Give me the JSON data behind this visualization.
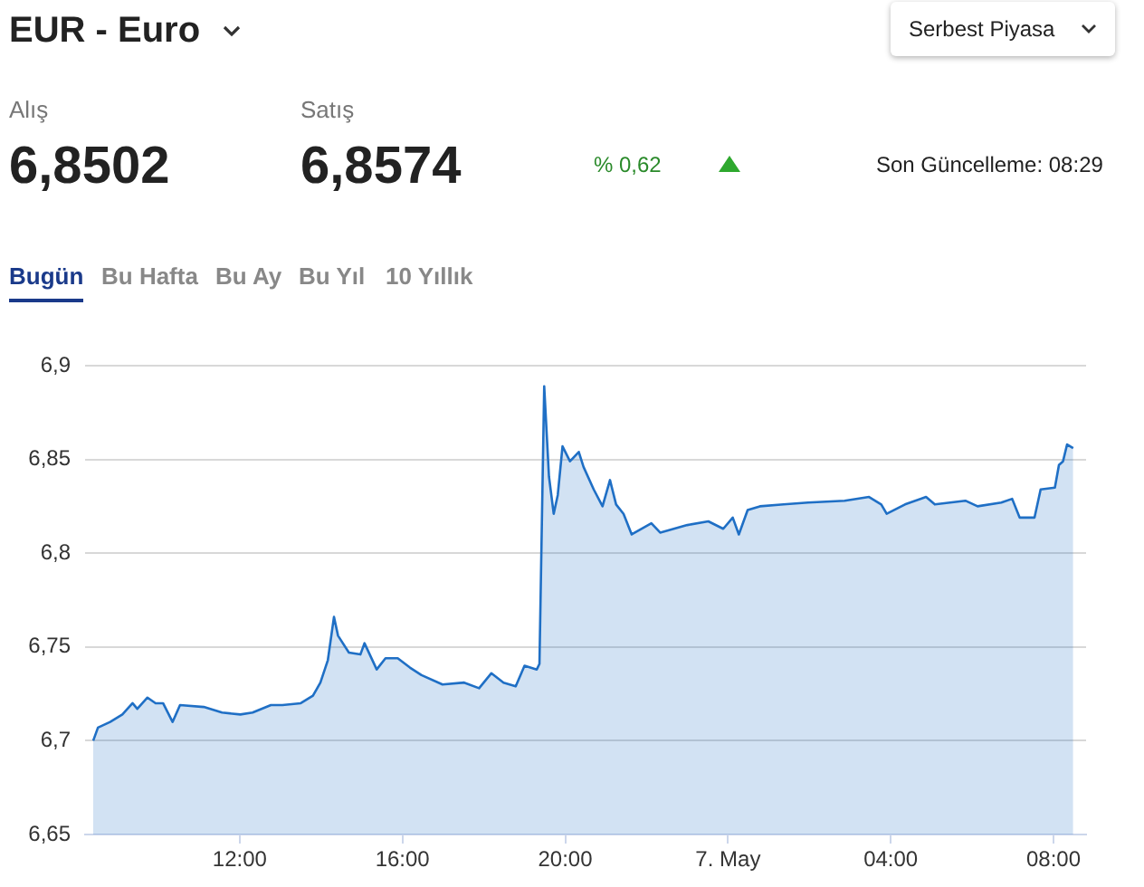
{
  "chart_data": {
    "type": "area",
    "title": "EUR - Euro",
    "annotations": [
      "Serbest Piyasa",
      "Alış",
      "6,8502",
      "Satış",
      "6,8574",
      "% 0,62",
      "Son Güncelleme: 08:29",
      "Bugün",
      "Bu Hafta",
      "Bu Ay",
      "Bu Yıl",
      "10 Yıllık"
    ],
    "xlim": [
      "--05-06T08:12",
      "--05-07T08:48"
    ],
    "xticks": [
      {
        "value": "--05-06T12:00",
        "label": "12:00"
      },
      {
        "value": "--05-06T16:00",
        "label": "16:00"
      },
      {
        "value": "--05-06T20:00",
        "label": "20:00"
      },
      {
        "value": "--05-07T00:00",
        "label": "7. May"
      },
      {
        "value": "--05-07T04:00",
        "label": "04:00"
      },
      {
        "value": "--05-07T08:00",
        "label": "08:00"
      }
    ],
    "ylim": [
      6.65,
      6.9
    ],
    "yticks": [
      {
        "value": 6.65,
        "label": "6,65"
      },
      {
        "value": 6.7,
        "label": "6,7"
      },
      {
        "value": 6.75,
        "label": "6,75"
      },
      {
        "value": 6.8,
        "label": "6,8"
      },
      {
        "value": 6.85,
        "label": "6,85"
      },
      {
        "value": 6.9,
        "label": "6,9"
      }
    ],
    "grid": "y",
    "legend": false,
    "marker": "none",
    "series": [
      {
        "color": "#1f6fc5",
        "x": [
          "--05-06T08:24",
          "--05-06T08:31",
          "--05-06T08:49",
          "--05-06T09:07",
          "--05-06T09:22",
          "--05-06T09:29",
          "--05-06T09:44",
          "--05-06T09:56",
          "--05-06T10:07",
          "--05-06T10:21",
          "--05-06T10:32",
          "--05-06T11:07",
          "--05-06T11:34",
          "--05-06T12:01",
          "--05-06T12:19",
          "--05-06T12:46",
          "--05-06T13:03",
          "--05-06T13:30",
          "--05-06T13:48",
          "--05-06T13:59",
          "--05-06T14:10",
          "--05-06T14:19",
          "--05-06T14:25",
          "--05-06T14:41",
          "--05-06T14:58",
          "--05-06T15:04",
          "--05-06T15:22",
          "--05-06T15:35",
          "--05-06T15:53",
          "--05-06T16:11",
          "--05-06T16:28",
          "--05-06T16:59",
          "--05-06T17:31",
          "--05-06T17:53",
          "--05-06T18:11",
          "--05-06T18:29",
          "--05-06T18:47",
          "--05-06T19:00",
          "--05-06T19:18",
          "--05-06T19:22",
          "--05-06T19:29",
          "--05-06T19:36",
          "--05-06T19:43",
          "--05-06T19:49",
          "--05-06T19:56",
          "--05-06T20:07",
          "--05-06T20:20",
          "--05-06T20:27",
          "--05-06T20:42",
          "--05-06T20:55",
          "--05-06T21:06",
          "--05-06T21:15",
          "--05-06T21:26",
          "--05-06T21:38",
          "--05-06T22:07",
          "--05-06T22:20",
          "--05-06T23:00",
          "--05-06T23:31",
          "--05-06T23:53",
          "--05-07T00:07",
          "--05-07T00:16",
          "--05-07T00:29",
          "--05-07T00:47",
          "--05-07T01:22",
          "--05-07T01:58",
          "--05-07T02:52",
          "--05-07T03:28",
          "--05-07T03:46",
          "--05-07T03:54",
          "--05-07T04:21",
          "--05-07T04:52",
          "--05-07T05:05",
          "--05-07T05:50",
          "--05-07T06:08",
          "--05-07T06:43",
          "--05-07T06:59",
          "--05-07T07:10",
          "--05-07T07:32",
          "--05-07T07:41",
          "--05-07T08:02",
          "--05-07T08:08",
          "--05-07T08:14",
          "--05-07T08:20",
          "--05-07T08:29"
        ],
        "values": [
          6.7,
          6.707,
          6.71,
          6.714,
          6.72,
          6.717,
          6.723,
          6.72,
          6.72,
          6.71,
          6.719,
          6.718,
          6.715,
          6.714,
          6.715,
          6.719,
          6.719,
          6.72,
          6.724,
          6.731,
          6.743,
          6.766,
          6.756,
          6.747,
          6.746,
          6.752,
          6.738,
          6.744,
          6.744,
          6.739,
          6.735,
          6.73,
          6.731,
          6.728,
          6.736,
          6.731,
          6.729,
          6.74,
          6.738,
          6.741,
          6.889,
          6.841,
          6.821,
          6.831,
          6.857,
          6.849,
          6.854,
          6.846,
          6.834,
          6.825,
          6.839,
          6.826,
          6.821,
          6.81,
          6.816,
          6.811,
          6.815,
          6.817,
          6.813,
          6.819,
          6.81,
          6.823,
          6.825,
          6.826,
          6.827,
          6.828,
          6.83,
          6.826,
          6.821,
          6.826,
          6.83,
          6.826,
          6.828,
          6.825,
          6.827,
          6.829,
          6.819,
          6.819,
          6.834,
          6.835,
          6.847,
          6.849,
          6.858,
          6.856
        ]
      }
    ]
  }
}
